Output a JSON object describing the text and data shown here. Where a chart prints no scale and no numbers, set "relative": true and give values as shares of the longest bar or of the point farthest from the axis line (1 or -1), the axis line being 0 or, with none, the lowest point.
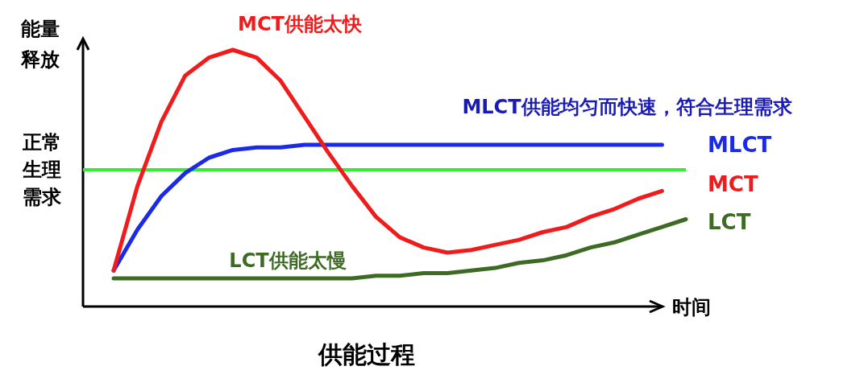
{
  "chart_data": {
    "type": "line",
    "relative": true,
    "legend": false,
    "marker": "none",
    "line_style": "solid",
    "title": "供能过程",
    "xlabel": "时间",
    "ylabel": "能量释放",
    "categories": [
      null,
      null,
      null,
      null,
      null,
      null,
      null,
      null,
      null,
      null,
      null,
      null,
      null,
      null,
      null,
      null,
      null,
      null,
      null,
      null,
      null,
      null,
      null,
      null,
      null
    ],
    "series": [
      {
        "name": "MLCT",
        "color": "#1a2ae6",
        "values": [
          0.14,
          0.3,
          0.43,
          0.52,
          0.58,
          0.61,
          0.62,
          0.62,
          0.63,
          0.63,
          0.63,
          0.63,
          0.63,
          0.63,
          0.63,
          0.63,
          0.63,
          0.63,
          0.63,
          0.63,
          0.63,
          0.63,
          0.63,
          0.63,
          null
        ]
      },
      {
        "name": "MCT",
        "color": "#ee1c1c",
        "values": [
          0.14,
          0.47,
          0.72,
          0.9,
          0.97,
          1.0,
          0.97,
          0.88,
          0.74,
          0.6,
          0.47,
          0.35,
          0.27,
          0.23,
          0.21,
          0.22,
          0.24,
          0.26,
          0.29,
          0.31,
          0.35,
          0.38,
          0.42,
          0.45,
          null
        ]
      },
      {
        "name": "LCT",
        "color": "#3d6b24",
        "values": [
          0.11,
          0.11,
          0.11,
          0.11,
          0.11,
          0.11,
          0.11,
          0.11,
          0.11,
          0.11,
          0.11,
          0.12,
          0.12,
          0.13,
          0.13,
          0.14,
          0.15,
          0.17,
          0.18,
          0.2,
          0.23,
          0.25,
          0.28,
          0.31,
          0.34
        ]
      }
    ],
    "ref_lines": [
      {
        "axis": "y",
        "value": 0.533,
        "label": "正常生理需求",
        "color": "#33ee33"
      }
    ],
    "annotations": [
      "MLCT供能均匀而快速，符合生理需求",
      "MCT供能太快",
      "LCT供能太慢"
    ]
  }
}
